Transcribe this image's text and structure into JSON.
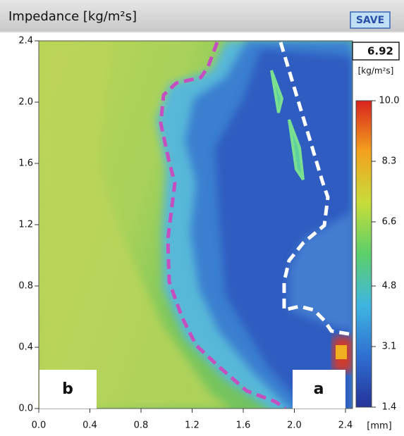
{
  "chart_data": {
    "type": "heatmap",
    "title": "Impedance [kg/m²s]",
    "button": "SAVE",
    "readout": 6.92,
    "colorbar_unit": "[kg/m²s]",
    "x_unit": "[mm]",
    "xlim": [
      0,
      2.4
    ],
    "xticks": [
      {
        "value": 0,
        "label": "0.0"
      },
      0.4,
      0.8,
      1.2,
      1.6,
      {
        "value": 2,
        "label": "2.0"
      },
      2.4
    ],
    "ylim": [
      0,
      2.4
    ],
    "yticks": [
      {
        "value": 0,
        "label": "0.0"
      },
      0.4,
      0.8,
      1.2,
      1.6,
      {
        "value": 2,
        "label": "2.0"
      },
      2.4
    ],
    "colorbar": {
      "lim": [
        1.4,
        10
      ],
      "ticks": [
        1.4,
        3.1,
        4.8,
        6.6,
        8.3,
        {
          "value": 10,
          "label": "10.0"
        }
      ],
      "colormap": [
        "#26339a",
        "#2f6fd0",
        "#3fb6e0",
        "#5ccf6a",
        "#c7dd3a",
        "#f3a21e",
        "#d8231e"
      ]
    },
    "annotations": [
      "b",
      "a"
    ]
  }
}
